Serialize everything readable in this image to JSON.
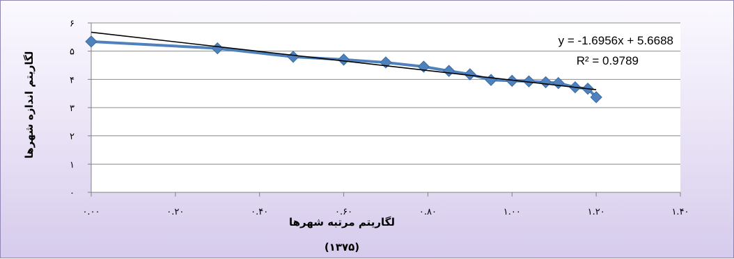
{
  "chart_data": {
    "type": "scatter",
    "xlabel": "لگاریتم مرتبه شهرها",
    "xlabel_sub": "(۱۳۷۵)",
    "ylabel": "لگاریتم اندازه شهرها",
    "xlim": [
      0,
      1.4
    ],
    "ylim": [
      0,
      6
    ],
    "x_ticks": [
      "۰.۰۰",
      "۰.۲۰",
      "۰.۴۰",
      "۰.۶۰",
      "۰.۸۰",
      "۱.۰۰",
      "۱.۲۰",
      "۱.۴۰"
    ],
    "y_ticks": [
      "۰",
      "۱",
      "۲",
      "۳",
      "۴",
      "۵",
      "۶"
    ],
    "grid": true,
    "series": [
      {
        "marker": "diamond",
        "color": "#4f81bd",
        "points": [
          {
            "x": 0.0,
            "y": 5.34
          },
          {
            "x": 0.3,
            "y": 5.1
          },
          {
            "x": 0.48,
            "y": 4.8
          },
          {
            "x": 0.6,
            "y": 4.7
          },
          {
            "x": 0.7,
            "y": 4.6
          },
          {
            "x": 0.79,
            "y": 4.45
          },
          {
            "x": 0.85,
            "y": 4.3
          },
          {
            "x": 0.9,
            "y": 4.18
          },
          {
            "x": 0.95,
            "y": 3.98
          },
          {
            "x": 1.0,
            "y": 3.95
          },
          {
            "x": 1.04,
            "y": 3.93
          },
          {
            "x": 1.08,
            "y": 3.9
          },
          {
            "x": 1.11,
            "y": 3.87
          },
          {
            "x": 1.15,
            "y": 3.72
          },
          {
            "x": 1.18,
            "y": 3.67
          },
          {
            "x": 1.2,
            "y": 3.37
          }
        ]
      }
    ],
    "trendline": {
      "slope": -1.6956,
      "intercept": 5.6688,
      "x_range": [
        0,
        1.2
      ],
      "color": "#000000",
      "equation_text": "y = -1.6956x + 5.6688",
      "r2_text": "R² = 0.9789"
    },
    "plot_background": "#ffffff",
    "grid_color": "#8c8c8c"
  }
}
